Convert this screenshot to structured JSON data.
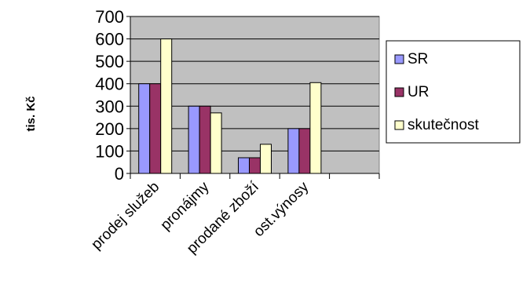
{
  "chart_data": {
    "type": "bar",
    "title": "",
    "ylabel": "tis. Kč",
    "xlabel": "",
    "ylim": [
      0,
      700
    ],
    "yticks": [
      0,
      100,
      200,
      300,
      400,
      500,
      600,
      700
    ],
    "categories": [
      "prodej služeb",
      "pronájmy",
      "prodané zboží",
      "ost.výnosy",
      ""
    ],
    "series": [
      {
        "name": "SR",
        "color": "#9999FF",
        "values": [
          400,
          300,
          70,
          200,
          null
        ]
      },
      {
        "name": "UR",
        "color": "#993366",
        "values": [
          400,
          300,
          70,
          200,
          null
        ]
      },
      {
        "name": "skutečnost",
        "color": "#FFFFCC",
        "values": [
          600,
          270,
          130,
          405,
          null
        ]
      }
    ],
    "grid": true,
    "legend_position": "right",
    "plot_background": "#C0C0C0"
  }
}
